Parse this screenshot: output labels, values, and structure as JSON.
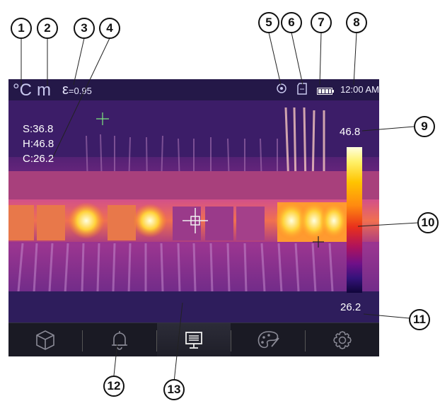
{
  "status_bar": {
    "unit": "°C",
    "mode": "m",
    "emissivity_symbol": "ε",
    "emissivity_value": "=0.95",
    "time": "12:00 AM",
    "icons": [
      "gps-icon",
      "sd-card-icon",
      "battery-icon"
    ]
  },
  "readout": {
    "spot": "S:36.8",
    "hot": "H:46.8",
    "cold": "C:26.2"
  },
  "scale": {
    "max": "46.8",
    "min": "26.2",
    "palette": "ironbow"
  },
  "menu": {
    "items": [
      {
        "icon": "gallery-box-icon"
      },
      {
        "icon": "bell-alarm-icon"
      },
      {
        "icon": "display-monitor-icon",
        "selected": true
      },
      {
        "icon": "palette-icon"
      },
      {
        "icon": "gear-icon"
      }
    ]
  },
  "callouts": [
    "1",
    "2",
    "3",
    "4",
    "5",
    "6",
    "7",
    "8",
    "9",
    "10",
    "11",
    "12",
    "13"
  ],
  "colors": {
    "accent": "#ffc400",
    "menu_bg": "#1a1a24",
    "screen_bg": "#22154a"
  }
}
